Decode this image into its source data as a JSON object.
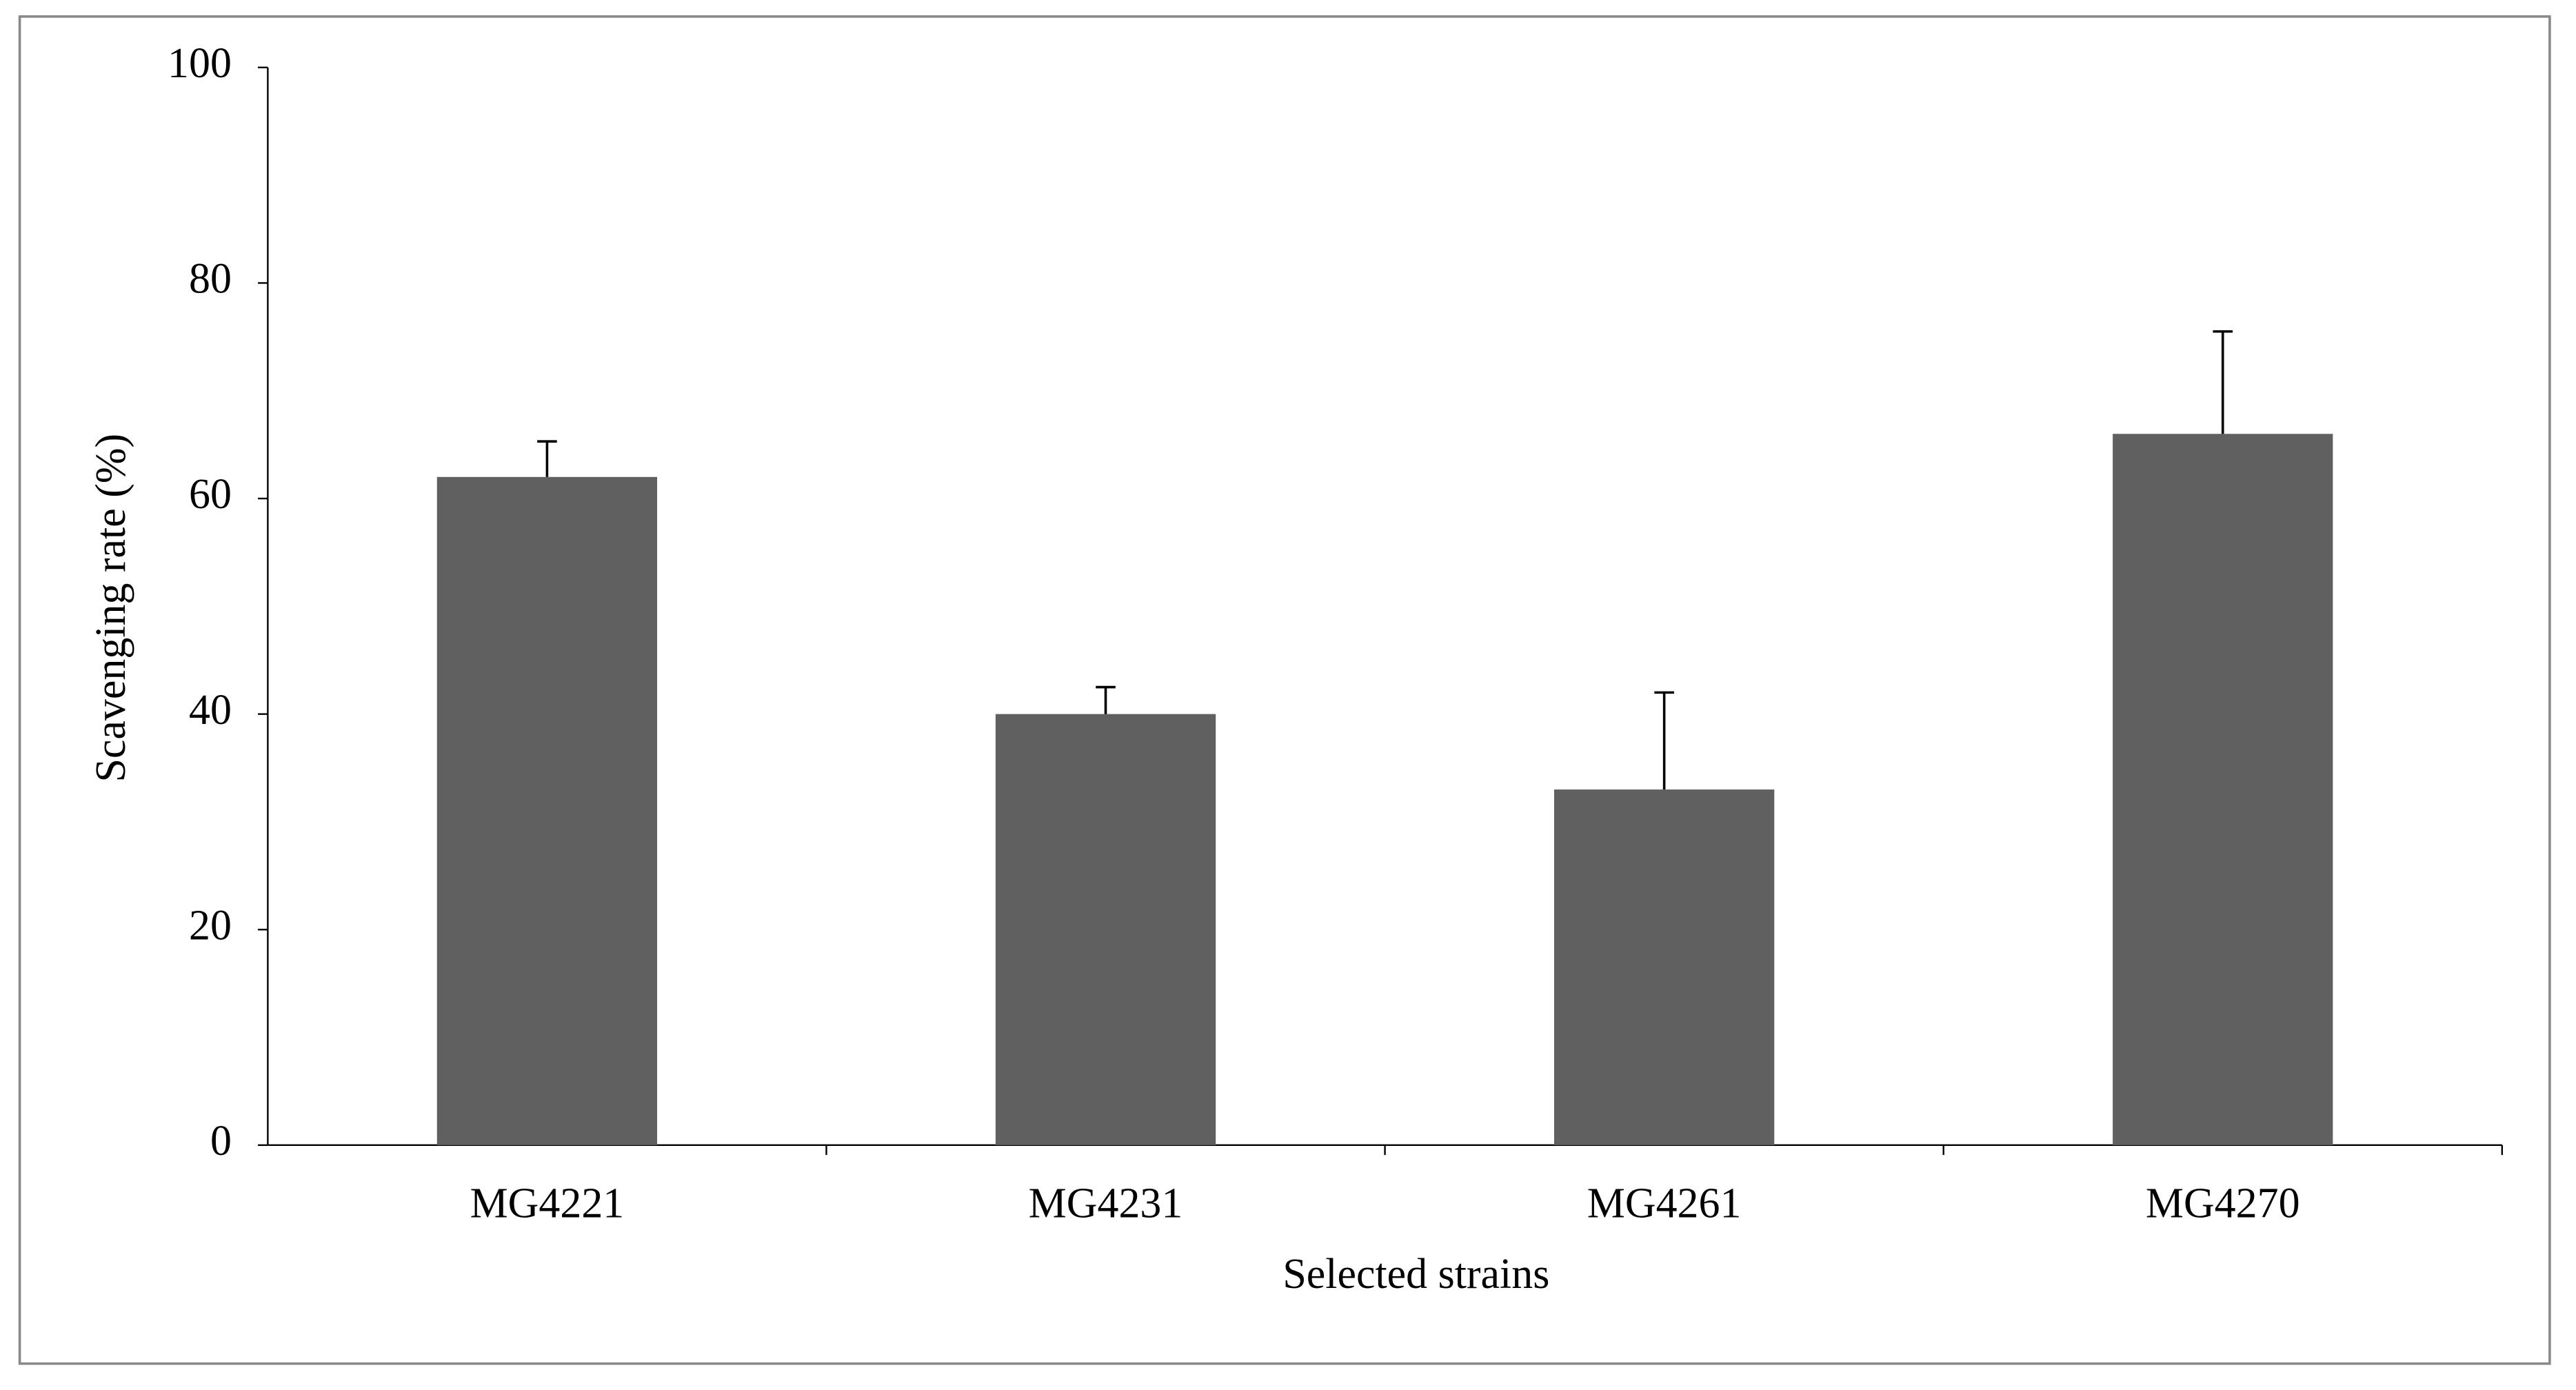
{
  "chart_data": {
    "type": "bar",
    "x_label": "Selected strains",
    "y_label": "Scavenging rate (%)",
    "categories": [
      "MG4221",
      "MG4231",
      "MG4261",
      "MG4270"
    ],
    "values": [
      62,
      40,
      33,
      66
    ],
    "errors": [
      3.3,
      2.5,
      9,
      9.5
    ],
    "color": "#606060",
    "ylim": [
      0,
      100
    ],
    "yticks": [
      0,
      20,
      40,
      60,
      80,
      100
    ],
    "grid": false
  }
}
